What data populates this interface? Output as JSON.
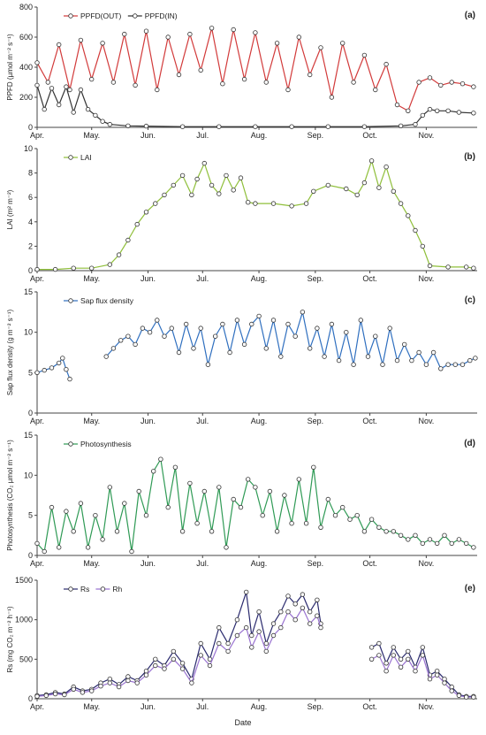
{
  "figure": {
    "xlabel": "Date"
  },
  "chart_data": [
    {
      "type": "line",
      "panel": "(a)",
      "ylabel": "PPFD (µmol m⁻² s⁻¹)",
      "ylim": [
        0,
        800
      ],
      "yticks": [
        0,
        200,
        400,
        600,
        800
      ],
      "xlim": [
        0,
        242
      ],
      "x_tick_labels": [
        "Apr.",
        "May.",
        "Jun.",
        "Jul.",
        "Aug.",
        "Sep.",
        "Oct.",
        "Nov."
      ],
      "x_tick_days": [
        0,
        30,
        61,
        91,
        122,
        153,
        183,
        214
      ],
      "legend": "top-left",
      "series": [
        {
          "name": "PPFD(OUT)",
          "color": "#d23a3a",
          "x_days": [
            0,
            6,
            12,
            18,
            24,
            30,
            36,
            42,
            48,
            54,
            60,
            66,
            72,
            78,
            84,
            90,
            96,
            102,
            108,
            114,
            120,
            126,
            132,
            138,
            144,
            150,
            156,
            162,
            168,
            174,
            180,
            186,
            192,
            198,
            204,
            210,
            216,
            222,
            228,
            234,
            240
          ],
          "y": [
            430,
            300,
            550,
            250,
            580,
            320,
            560,
            300,
            620,
            280,
            640,
            250,
            600,
            350,
            620,
            380,
            660,
            290,
            650,
            320,
            630,
            300,
            560,
            250,
            600,
            350,
            530,
            200,
            560,
            300,
            480,
            250,
            420,
            150,
            110,
            300,
            330,
            280,
            300,
            290,
            270
          ]
        },
        {
          "name": "PPFD(IN)",
          "color": "#333333",
          "x_days": [
            0,
            4,
            8,
            12,
            16,
            20,
            24,
            28,
            32,
            36,
            40,
            50,
            60,
            80,
            100,
            120,
            140,
            160,
            180,
            200,
            208,
            212,
            216,
            220,
            226,
            232,
            240
          ],
          "y": [
            280,
            120,
            260,
            150,
            270,
            100,
            250,
            120,
            80,
            40,
            20,
            10,
            8,
            5,
            5,
            5,
            5,
            5,
            5,
            10,
            20,
            80,
            120,
            110,
            110,
            100,
            95
          ]
        }
      ]
    },
    {
      "type": "line",
      "panel": "(b)",
      "ylabel": "LAI (m² m⁻²)",
      "ylim": [
        0,
        10
      ],
      "yticks": [
        0,
        2,
        4,
        6,
        8,
        10
      ],
      "xlim": [
        0,
        242
      ],
      "x_tick_labels": [
        "Apr.",
        "May.",
        "Jun.",
        "Jul.",
        "Aug.",
        "Sep.",
        "Oct.",
        "Nov."
      ],
      "x_tick_days": [
        0,
        30,
        61,
        91,
        122,
        153,
        183,
        214
      ],
      "legend": "top-left",
      "series": [
        {
          "name": "LAI",
          "color": "#8fbf3a",
          "x_days": [
            0,
            10,
            20,
            30,
            40,
            45,
            50,
            55,
            60,
            65,
            70,
            75,
            80,
            85,
            88,
            92,
            96,
            100,
            104,
            108,
            112,
            116,
            120,
            130,
            140,
            148,
            152,
            160,
            170,
            176,
            180,
            184,
            188,
            192,
            196,
            200,
            204,
            208,
            212,
            216,
            226,
            236,
            240
          ],
          "y": [
            0.1,
            0.1,
            0.2,
            0.2,
            0.5,
            1.3,
            2.5,
            3.8,
            4.8,
            5.5,
            6.2,
            7.0,
            7.8,
            6.2,
            7.5,
            8.8,
            7.0,
            6.3,
            7.8,
            6.6,
            7.6,
            5.6,
            5.5,
            5.5,
            5.3,
            5.5,
            6.5,
            7.0,
            6.7,
            6.2,
            7.2,
            9.0,
            6.8,
            8.5,
            6.5,
            5.5,
            4.5,
            3.3,
            2.0,
            0.4,
            0.3,
            0.3,
            0.2
          ]
        }
      ]
    },
    {
      "type": "line",
      "panel": "(c)",
      "ylabel": "Sap flux density (g m⁻² s⁻¹)",
      "ylim": [
        0,
        15
      ],
      "yticks": [
        0,
        5,
        10,
        15
      ],
      "xlim": [
        0,
        242
      ],
      "x_tick_labels": [
        "Apr.",
        "May.",
        "Jun.",
        "Jul.",
        "Aug.",
        "Sep.",
        "Oct.",
        "Nov."
      ],
      "x_tick_days": [
        0,
        30,
        61,
        91,
        122,
        153,
        183,
        214
      ],
      "legend": "top-left",
      "series": [
        {
          "name": "Sap flux density",
          "color": "#2f6fbf",
          "x_days": [
            0,
            4,
            8,
            12,
            14,
            16,
            18
          ],
          "y": [
            5.0,
            5.3,
            5.6,
            6.2,
            6.8,
            5.4,
            4.2
          ]
        },
        {
          "name": "Sap flux density",
          "color": "#2f6fbf",
          "x_days": [
            38,
            42,
            46,
            50,
            54,
            58,
            62,
            66,
            70,
            74,
            78,
            82,
            86,
            90,
            94,
            98,
            102,
            106,
            110,
            114,
            118,
            122,
            126,
            130,
            134,
            138,
            142,
            146,
            150,
            154,
            158,
            162,
            166,
            170,
            174,
            178,
            182,
            186,
            190,
            194,
            198,
            202,
            206,
            210,
            214,
            218,
            222,
            226,
            230,
            234,
            238,
            241
          ],
          "y": [
            7.0,
            8.0,
            9.0,
            9.5,
            8.5,
            10.5,
            10.0,
            11.5,
            9.5,
            10.5,
            7.5,
            11.0,
            8.0,
            10.5,
            6.0,
            9.5,
            11.0,
            7.5,
            11.5,
            8.5,
            11.0,
            12.0,
            8.0,
            11.5,
            7.0,
            11.0,
            9.5,
            12.5,
            8.0,
            10.5,
            7.0,
            11.0,
            6.5,
            10.0,
            6.0,
            11.5,
            7.0,
            9.5,
            6.0,
            10.5,
            6.5,
            8.5,
            6.5,
            7.5,
            6.0,
            7.5,
            5.5,
            6.0,
            6.0,
            6.0,
            6.5,
            6.8
          ]
        }
      ]
    },
    {
      "type": "line",
      "panel": "(d)",
      "ylabel": "Photosynthesis (CO₂ µmol m⁻² s⁻¹)",
      "ylim": [
        0,
        15
      ],
      "yticks": [
        0,
        5,
        10,
        15
      ],
      "xlim": [
        0,
        242
      ],
      "x_tick_labels": [
        "Apr.",
        "May.",
        "Jun.",
        "Jul.",
        "Aug.",
        "Sep.",
        "Oct.",
        "Nov."
      ],
      "x_tick_days": [
        0,
        30,
        61,
        91,
        122,
        153,
        183,
        214
      ],
      "legend": "top-left",
      "series": [
        {
          "name": "Photosynthesis",
          "color": "#2f9a55",
          "x_days": [
            0,
            4,
            8,
            12,
            16,
            20,
            24,
            28,
            32,
            36,
            40,
            44,
            48,
            52,
            56,
            60,
            64,
            68,
            72,
            76,
            80,
            84,
            88,
            92,
            96,
            100,
            104,
            108,
            112,
            116,
            120,
            124,
            128,
            132,
            136,
            140,
            144,
            148,
            152,
            156,
            160,
            164,
            168,
            172,
            176,
            180,
            184,
            188,
            192,
            196,
            200,
            204,
            208,
            212,
            216,
            220,
            224,
            228,
            232,
            236,
            240
          ],
          "y": [
            1.5,
            0.5,
            6.0,
            1.0,
            5.5,
            3.0,
            6.5,
            1.0,
            5.0,
            2.0,
            8.5,
            3.0,
            6.5,
            0.5,
            8.0,
            5.0,
            10.5,
            12.0,
            6.0,
            11.0,
            3.0,
            9.0,
            4.0,
            8.0,
            3.0,
            8.5,
            1.0,
            7.0,
            6.0,
            9.5,
            8.5,
            5.0,
            8.0,
            3.0,
            7.5,
            4.0,
            9.5,
            4.0,
            11.0,
            3.5,
            7.0,
            5.0,
            6.0,
            4.5,
            5.0,
            3.0,
            4.5,
            3.5,
            3.0,
            3.0,
            2.5,
            2.0,
            2.5,
            1.5,
            2.0,
            1.5,
            2.5,
            1.5,
            2.0,
            1.5,
            1.0
          ]
        }
      ]
    },
    {
      "type": "line",
      "panel": "(e)",
      "ylabel": "Rs (mg CO₂ m⁻² h⁻¹)",
      "ylim": [
        0,
        1500
      ],
      "yticks": [
        0,
        500,
        1000,
        1500
      ],
      "xlim": [
        0,
        242
      ],
      "x_tick_labels": [
        "Apr.",
        "May.",
        "Jun.",
        "Jul.",
        "Aug.",
        "Sep.",
        "Oct.",
        "Nov."
      ],
      "x_tick_days": [
        0,
        30,
        61,
        91,
        122,
        153,
        183,
        214
      ],
      "legend": "top-left",
      "series": [
        {
          "name": "Rs",
          "color": "#2a2a6e",
          "x_days": [
            0,
            5,
            10,
            15,
            20,
            25,
            30,
            35,
            40,
            45,
            50,
            55,
            60,
            65,
            70,
            75,
            80,
            85,
            90,
            95,
            100,
            105,
            110,
            115,
            118,
            122,
            126,
            130,
            134,
            138,
            142,
            146,
            150,
            154,
            156
          ],
          "y": [
            40,
            50,
            80,
            60,
            150,
            100,
            120,
            200,
            250,
            180,
            280,
            230,
            350,
            500,
            420,
            600,
            450,
            250,
            700,
            500,
            900,
            700,
            1000,
            1350,
            800,
            1100,
            700,
            950,
            1100,
            1300,
            1200,
            1320,
            1100,
            1250,
            950
          ]
        },
        {
          "name": "Rs",
          "color": "#2a2a6e",
          "x_days": [
            184,
            188,
            192,
            196,
            200,
            204,
            208,
            212,
            216,
            220,
            224,
            228,
            232,
            236,
            240
          ],
          "y": [
            650,
            700,
            450,
            650,
            500,
            600,
            400,
            650,
            300,
            350,
            250,
            150,
            50,
            30,
            30
          ]
        },
        {
          "name": "Rh",
          "color": "#9a73d1",
          "x_days": [
            0,
            5,
            10,
            15,
            20,
            25,
            30,
            35,
            40,
            45,
            50,
            55,
            60,
            65,
            70,
            75,
            80,
            85,
            90,
            95,
            100,
            105,
            110,
            115,
            118,
            122,
            126,
            130,
            134,
            138,
            142,
            146,
            150,
            154,
            156
          ],
          "y": [
            30,
            40,
            60,
            50,
            120,
            80,
            100,
            160,
            200,
            150,
            230,
            200,
            300,
            420,
            380,
            500,
            380,
            200,
            550,
            420,
            700,
            600,
            800,
            900,
            650,
            850,
            600,
            800,
            900,
            1100,
            1000,
            1150,
            950,
            1050,
            900
          ]
        },
        {
          "name": "Rh",
          "color": "#9a73d1",
          "x_days": [
            184,
            188,
            192,
            196,
            200,
            204,
            208,
            212,
            216,
            220,
            224,
            228,
            232,
            236,
            240
          ],
          "y": [
            500,
            550,
            350,
            550,
            400,
            500,
            350,
            550,
            250,
            300,
            200,
            100,
            40,
            20,
            20
          ]
        }
      ]
    }
  ]
}
